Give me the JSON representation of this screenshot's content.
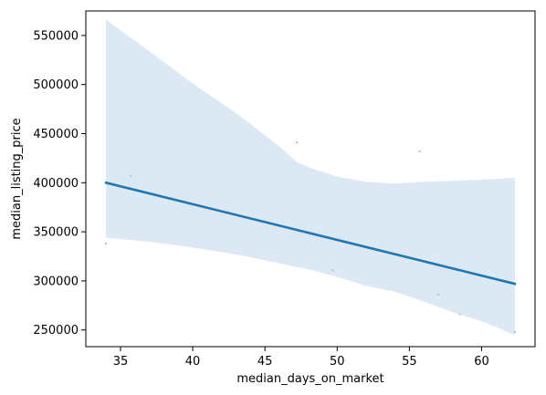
{
  "chart_data": {
    "type": "scatter",
    "title": "",
    "xlabel": "median_days_on_market",
    "ylabel": "median_listing_price",
    "xlim": [
      32.6,
      63.7
    ],
    "ylim": [
      233000,
      575000
    ],
    "x_ticks": [
      35,
      40,
      45,
      50,
      55,
      60
    ],
    "y_ticks": [
      250000,
      300000,
      350000,
      400000,
      450000,
      500000,
      550000
    ],
    "grid": false,
    "legend": "none",
    "colors": {
      "line": "#1f77b4",
      "band": "#dce8f4",
      "points": "#a9c6e2"
    },
    "points": [
      {
        "x": 34.0,
        "y": 338000
      },
      {
        "x": 35.7,
        "y": 407000
      },
      {
        "x": 47.2,
        "y": 441000
      },
      {
        "x": 49.7,
        "y": 311000
      },
      {
        "x": 55.7,
        "y": 432000
      },
      {
        "x": 57.0,
        "y": 286000
      },
      {
        "x": 58.5,
        "y": 266000
      },
      {
        "x": 62.3,
        "y": 248000
      }
    ],
    "regression": {
      "x": [
        34.0,
        62.3
      ],
      "y": [
        400000,
        297000
      ]
    },
    "confidence_band": {
      "x": [
        34.0,
        37.0,
        40.0,
        43.0,
        46.0,
        47.2,
        48.0,
        50.0,
        52.0,
        54.0,
        56.0,
        58.0,
        60.0,
        62.3
      ],
      "upper": [
        566000,
        534000,
        501000,
        471000,
        437000,
        421000,
        416000,
        406000,
        401000,
        399000,
        401000,
        402000,
        403000,
        405000
      ],
      "lower": [
        344000,
        340000,
        334000,
        327000,
        318000,
        314000,
        312000,
        304000,
        295000,
        289000,
        279000,
        268000,
        259000,
        245000
      ]
    }
  }
}
